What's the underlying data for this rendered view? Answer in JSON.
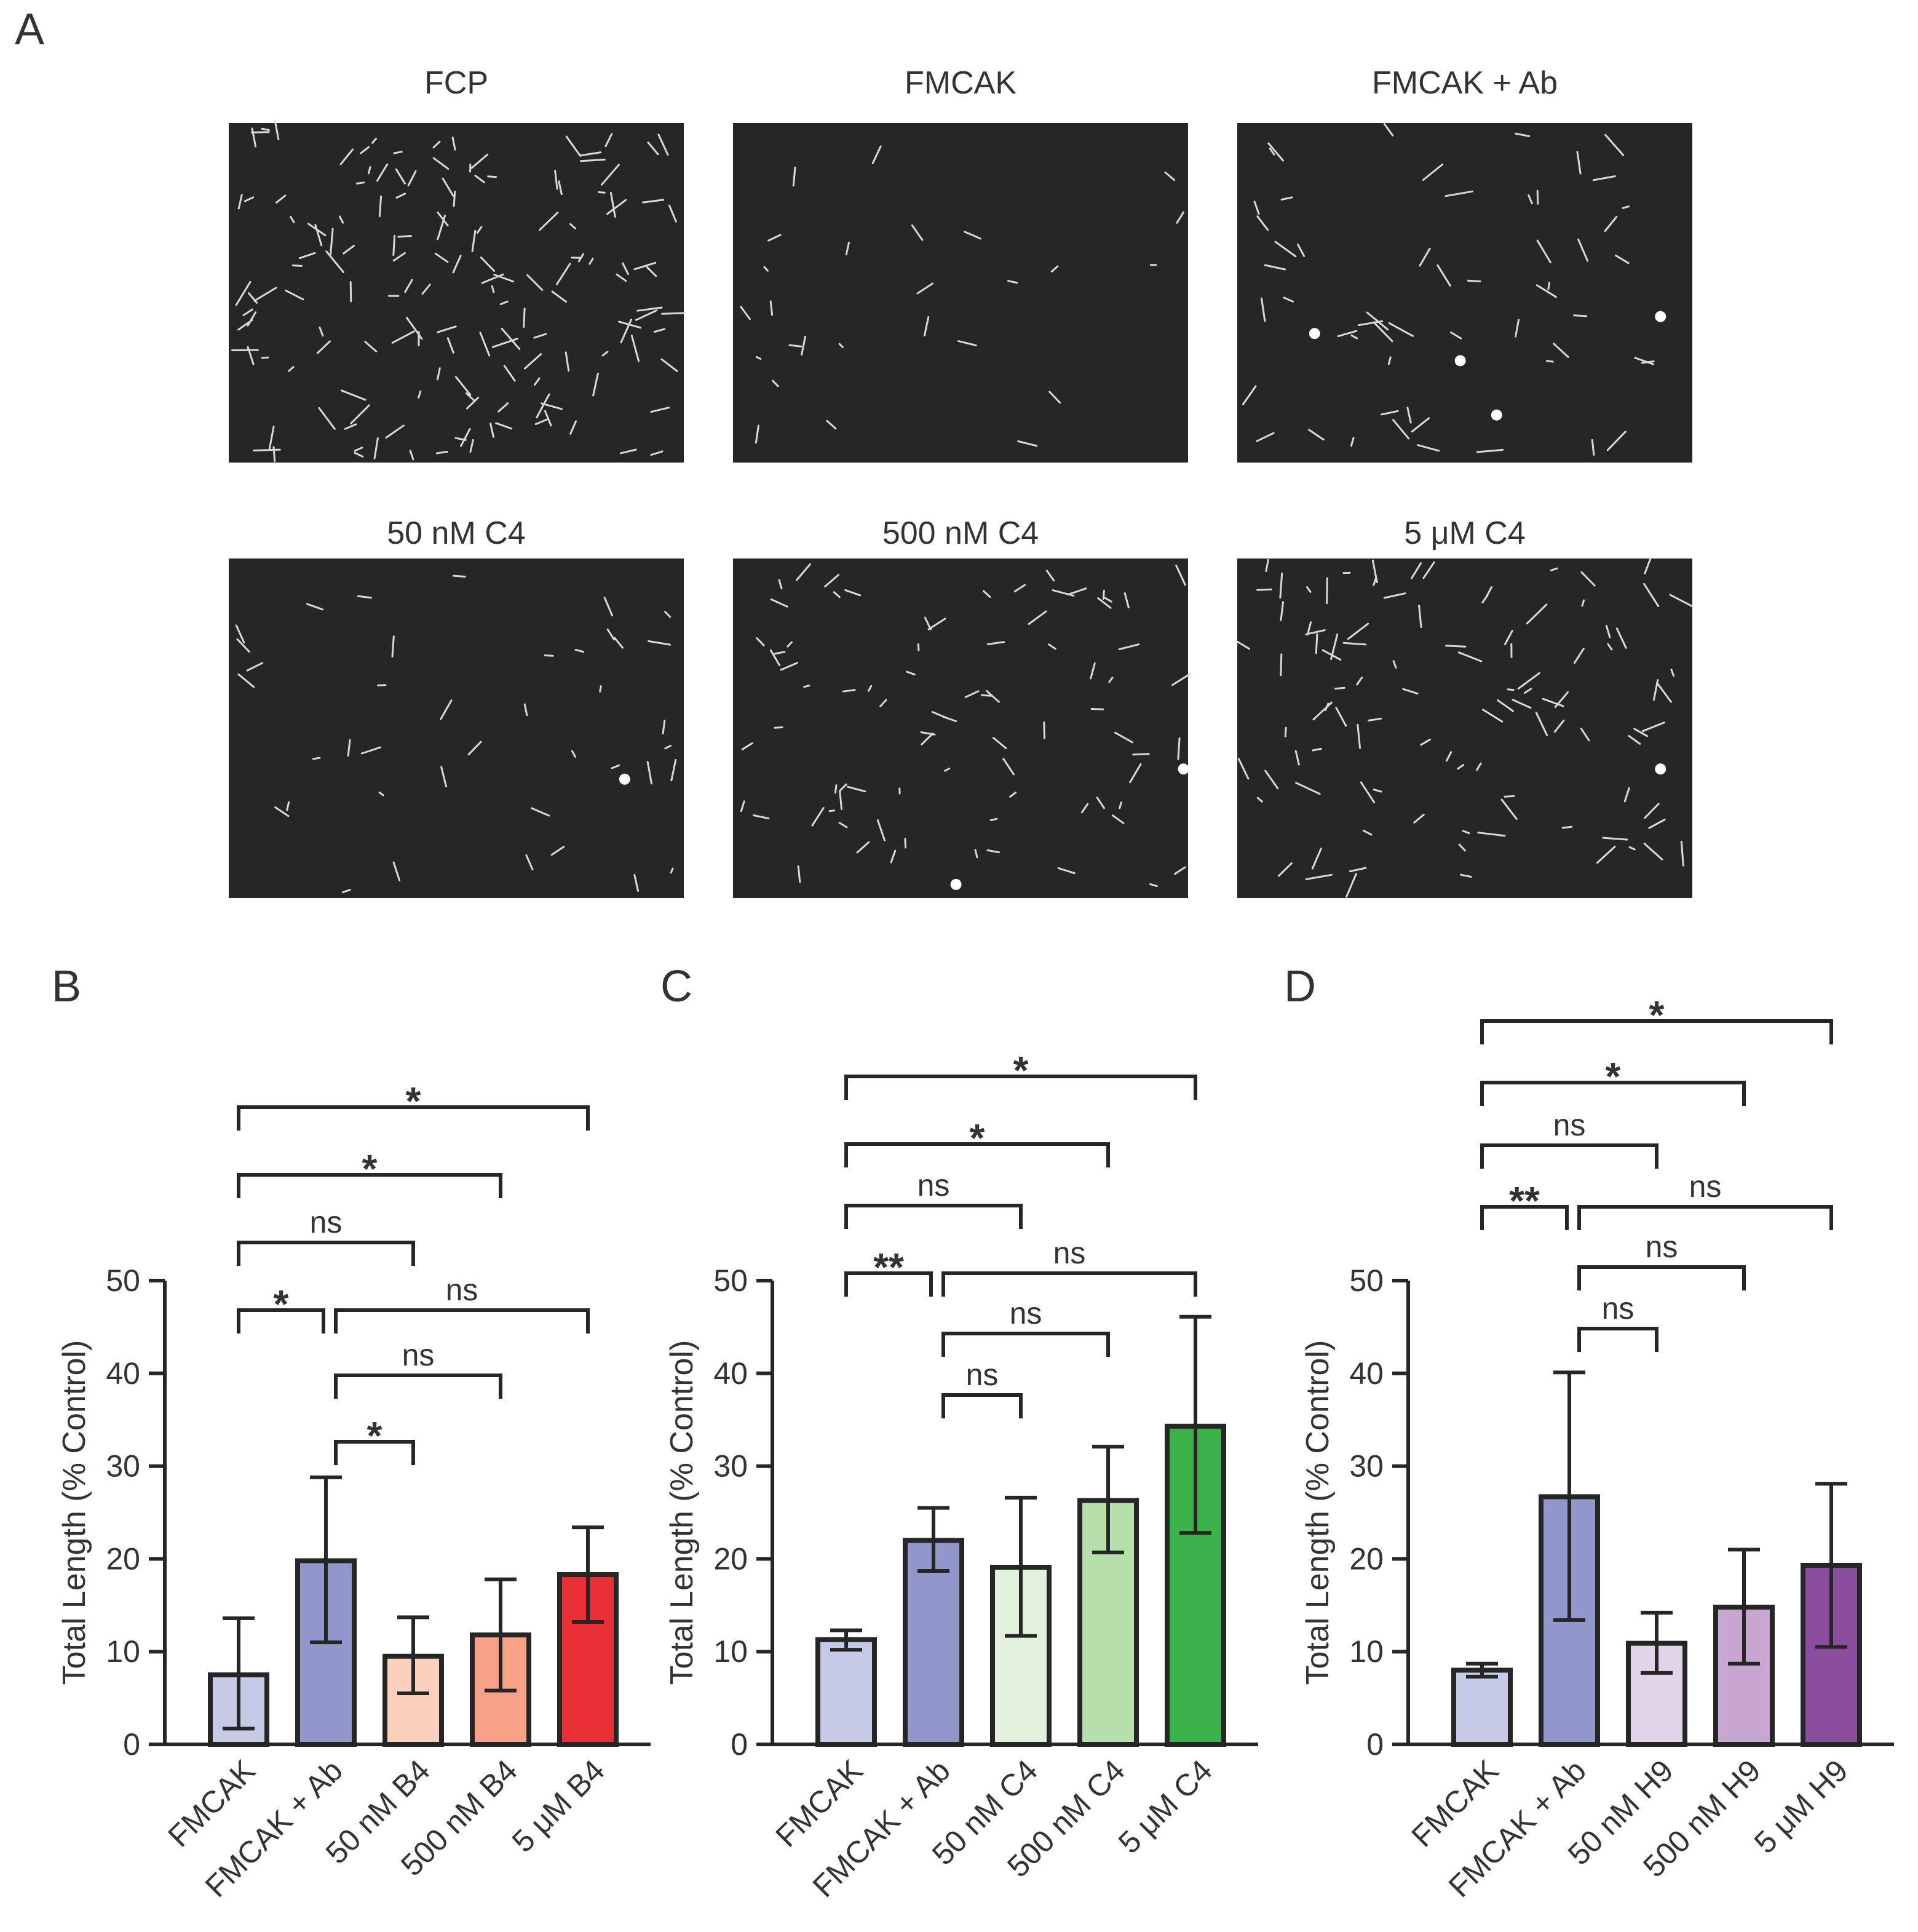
{
  "figure_panel_label_a": "A",
  "micrographs": [
    {
      "title": "FCP",
      "seed": 11,
      "density": 150,
      "streak_len": 22,
      "bright": []
    },
    {
      "title": "FMCAK",
      "seed": 23,
      "density": 26,
      "streak_len": 16,
      "bright": []
    },
    {
      "title": "FMCAK + Ab",
      "seed": 37,
      "density": 55,
      "streak_len": 22,
      "bright": [
        [
          0.17,
          0.62
        ],
        [
          0.49,
          0.7
        ],
        [
          0.57,
          0.86
        ],
        [
          0.93,
          0.57
        ]
      ]
    },
    {
      "title": "50 nM C4",
      "seed": 41,
      "density": 40,
      "streak_len": 18,
      "bright": [
        [
          0.87,
          0.65
        ]
      ]
    },
    {
      "title": "500 nM C4",
      "seed": 53,
      "density": 80,
      "streak_len": 18,
      "bright": [
        [
          0.49,
          0.96
        ],
        [
          0.99,
          0.62
        ]
      ]
    },
    {
      "title": "5 μM C4",
      "seed": 67,
      "density": 100,
      "streak_len": 22,
      "bright": [
        [
          0.93,
          0.62
        ]
      ]
    }
  ],
  "chart_data": [
    {
      "type": "bar",
      "panel": "B",
      "ylabel": "Total Length  (% Control)",
      "ylim": [
        0,
        50
      ],
      "yticks": [
        "0",
        "10",
        "20",
        "30",
        "40",
        "50"
      ],
      "categories": [
        "FMCAK",
        "FMCAK + Ab",
        "50 nM B4",
        "500 nM B4",
        "5 μM B4"
      ],
      "values": [
        7.5,
        19.8,
        9.5,
        11.8,
        18.3
      ],
      "error": [
        [
          1.7,
          13.6
        ],
        [
          11.0,
          28.8
        ],
        [
          5.5,
          13.7
        ],
        [
          5.8,
          17.8
        ],
        [
          13.2,
          23.4
        ]
      ],
      "colors": [
        "#c5cae7",
        "#9196cb",
        "#fbd0bc",
        "#f7a287",
        "#e83036"
      ],
      "comparisons": [
        {
          "from": 0,
          "to": 4,
          "label": "*"
        },
        {
          "from": 0,
          "to": 3,
          "label": "*"
        },
        {
          "from": 0,
          "to": 2,
          "label": "ns"
        },
        {
          "from": 0,
          "to": 1,
          "label": "*"
        },
        {
          "from": 1,
          "to": 4,
          "label": "ns"
        },
        {
          "from": 1,
          "to": 3,
          "label": "ns"
        },
        {
          "from": 1,
          "to": 2,
          "label": "*"
        }
      ]
    },
    {
      "type": "bar",
      "panel": "C",
      "ylabel": "Total Length  (% Control)",
      "ylim": [
        0,
        50
      ],
      "yticks": [
        "0",
        "10",
        "20",
        "30",
        "40",
        "50"
      ],
      "categories": [
        "FMCAK",
        "FMCAK + Ab",
        "50 nM C4",
        "500 nM C4",
        "5 μM C4"
      ],
      "values": [
        11.3,
        22.0,
        19.1,
        26.3,
        34.3
      ],
      "error": [
        [
          10.2,
          12.3
        ],
        [
          18.7,
          25.5
        ],
        [
          11.7,
          26.6
        ],
        [
          20.7,
          32.1
        ],
        [
          22.8,
          46.1
        ]
      ],
      "colors": [
        "#c5cae7",
        "#9196cb",
        "#e2f1dc",
        "#b6dfac",
        "#3bb34a"
      ],
      "comparisons": [
        {
          "from": 0,
          "to": 4,
          "label": "*"
        },
        {
          "from": 0,
          "to": 3,
          "label": "*"
        },
        {
          "from": 0,
          "to": 2,
          "label": "ns"
        },
        {
          "from": 0,
          "to": 1,
          "label": "**"
        },
        {
          "from": 1,
          "to": 4,
          "label": "ns"
        },
        {
          "from": 1,
          "to": 3,
          "label": "ns"
        },
        {
          "from": 1,
          "to": 2,
          "label": "ns"
        }
      ]
    },
    {
      "type": "bar",
      "panel": "D",
      "ylabel": "Total Length  (% Control)",
      "ylim": [
        0,
        50
      ],
      "yticks": [
        "0",
        "10",
        "20",
        "30",
        "40",
        "50"
      ],
      "categories": [
        "FMCAK",
        "FMCAK + Ab",
        "50 nM H9",
        "500 nM H9",
        "5 μM H9"
      ],
      "values": [
        8.0,
        26.7,
        10.9,
        14.8,
        19.3
      ],
      "error": [
        [
          7.3,
          8.7
        ],
        [
          13.4,
          40.1
        ],
        [
          7.7,
          14.2
        ],
        [
          8.7,
          21.0
        ],
        [
          10.5,
          28.1
        ]
      ],
      "colors": [
        "#c5cae7",
        "#9196cb",
        "#e3d3e8",
        "#c7a7d2",
        "#8b4e9f"
      ],
      "comparisons": [
        {
          "from": 0,
          "to": 4,
          "label": "*"
        },
        {
          "from": 0,
          "to": 3,
          "label": "*"
        },
        {
          "from": 0,
          "to": 2,
          "label": "ns"
        },
        {
          "from": 0,
          "to": 1,
          "label": "**"
        },
        {
          "from": 1,
          "to": 4,
          "label": "ns"
        },
        {
          "from": 1,
          "to": 3,
          "label": "ns"
        },
        {
          "from": 1,
          "to": 2,
          "label": "ns"
        }
      ]
    }
  ]
}
